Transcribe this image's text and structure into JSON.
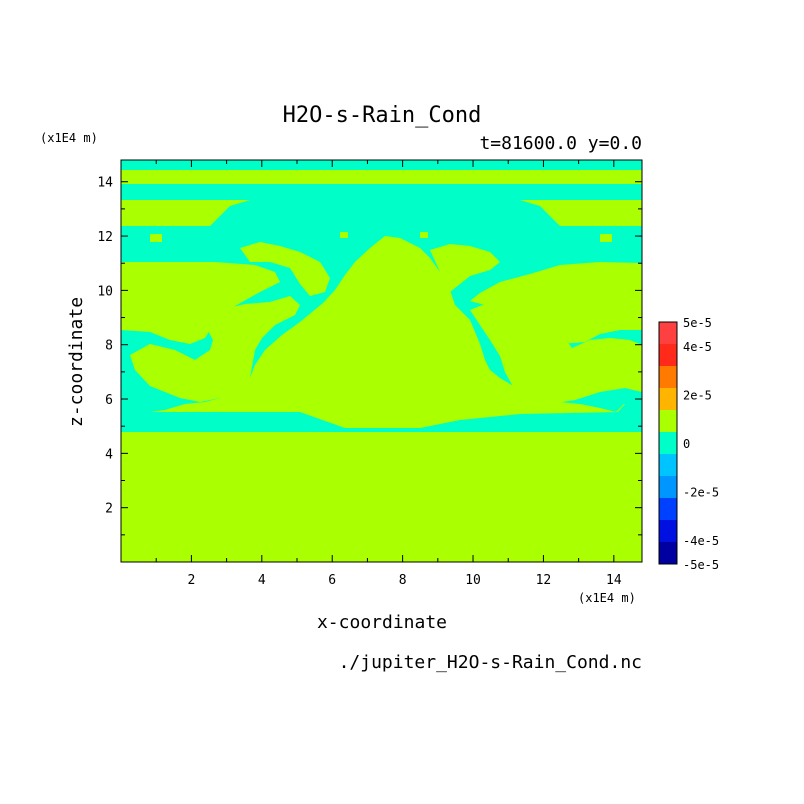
{
  "chart_data": {
    "type": "heatmap",
    "title": "H2O-s-Rain_Cond",
    "subtitle": "t=81600.0 y=0.0",
    "xlabel": "x-coordinate",
    "ylabel": "z-coordinate",
    "x_unit": "(x1E4 m)",
    "y_unit": "(x1E4 m)",
    "footer": "./jupiter_H2O-s-Rain_Cond.nc",
    "xlim": [
      0,
      14.8
    ],
    "ylim": [
      0,
      14.8
    ],
    "x_ticks": [
      "2",
      "4",
      "6",
      "8",
      "10",
      "12",
      "14"
    ],
    "y_ticks": [
      "2",
      "4",
      "6",
      "8",
      "10",
      "12",
      "14"
    ],
    "grid": false,
    "colorbar": {
      "placement": "right",
      "labels": [
        "5e-5",
        "4e-5",
        "2e-5",
        "0",
        "-2e-5",
        "-4e-5",
        "-5e-5"
      ],
      "levels": [
        {
          "value": 5e-05,
          "color": "#ff4040"
        },
        {
          "value": 4e-05,
          "color": "#ff2a1a"
        },
        {
          "value": 3e-05,
          "color": "#ff7a00"
        },
        {
          "value": 2e-05,
          "color": "#ffb400"
        },
        {
          "value": 1e-05,
          "color": "#aaff00"
        },
        {
          "value": 0,
          "color": "#00ffc8"
        },
        {
          "value": -1e-05,
          "color": "#00c4ff"
        },
        {
          "value": -2e-05,
          "color": "#0096ff"
        },
        {
          "value": -3e-05,
          "color": "#0040ff"
        },
        {
          "value": -4e-05,
          "color": "#0010e0"
        },
        {
          "value": -5e-05,
          "color": "#0000a0"
        }
      ]
    },
    "field_colors": {
      "positive": "#aaff00",
      "negative": "#00ffc8"
    }
  }
}
